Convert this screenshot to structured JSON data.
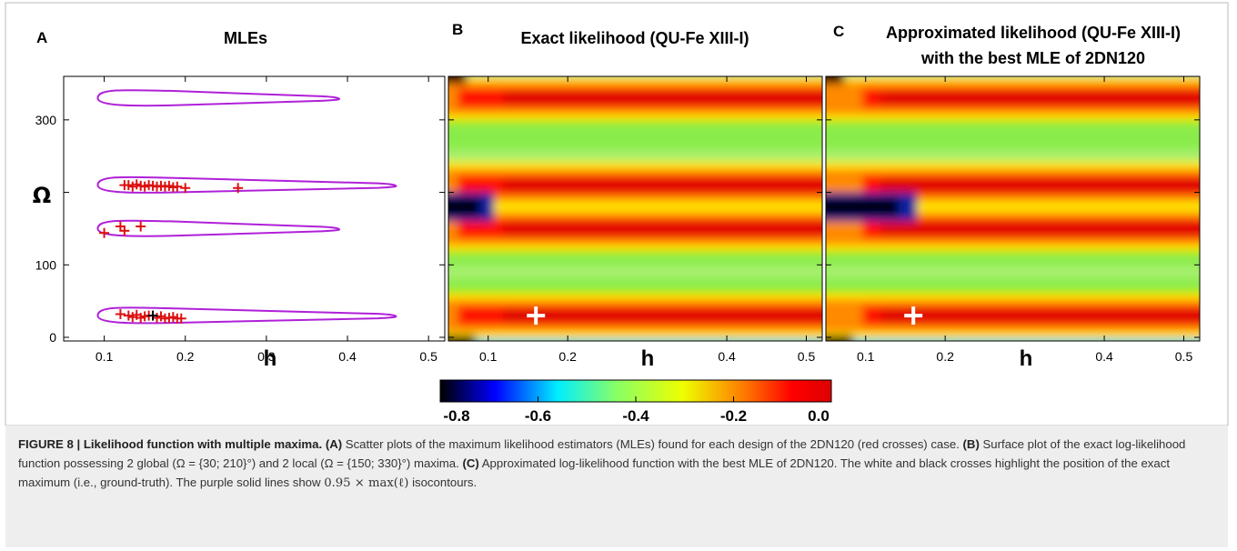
{
  "panels": [
    {
      "letter": "A",
      "title_lines": [
        "MLEs"
      ]
    },
    {
      "letter": "B",
      "title_lines": [
        "Exact likelihood (QU-Fe XIII-I)"
      ]
    },
    {
      "letter": "C",
      "title_lines": [
        "Approximated likelihood (QU-Fe XIII-I)",
        "with the best MLE of 2DN120"
      ]
    }
  ],
  "axes": {
    "y_label": "Ω",
    "x_label": "h",
    "y_ticks": [
      "0",
      "100",
      "300"
    ],
    "x_ticks_a": [
      "0.1",
      "0.2",
      "0.3",
      "0.4",
      "0.5"
    ],
    "x_ticks_bc": [
      "0.1",
      "0.2",
      "0.4",
      "0.5"
    ]
  },
  "colorbar": {
    "tick_labels": [
      "-0.8",
      "-0.6",
      "-0.4",
      "-0.2",
      "0.0"
    ],
    "stops": [
      "#000000",
      "#0000ff",
      "#00eeff",
      "#88ff66",
      "#eeff00",
      "#ff7700",
      "#ff0000",
      "#dd0000"
    ]
  },
  "colors": {
    "contour": "#b020d8",
    "mle_cross": "#dd1111",
    "truth_cross_a": "#000000",
    "truth_cross_bc": "#ffffff"
  },
  "chart_data": [
    {
      "type": "scatter",
      "title": "MLEs",
      "xlabel": "h",
      "ylabel": "Ω",
      "xlim": [
        0.05,
        0.52
      ],
      "ylim": [
        -5,
        360
      ],
      "series": [
        {
          "name": "MLEs 2DN120",
          "marker": "plus",
          "color": "#dd1111",
          "points": [
            [
              0.125,
              210
            ],
            [
              0.13,
              210
            ],
            [
              0.135,
              208
            ],
            [
              0.14,
              211
            ],
            [
              0.145,
              209
            ],
            [
              0.15,
              208
            ],
            [
              0.155,
              210
            ],
            [
              0.16,
              209
            ],
            [
              0.165,
              208
            ],
            [
              0.17,
              209
            ],
            [
              0.175,
              208
            ],
            [
              0.18,
              209
            ],
            [
              0.185,
              207
            ],
            [
              0.19,
              208
            ],
            [
              0.2,
              206
            ],
            [
              0.265,
              206
            ],
            [
              0.12,
              153
            ],
            [
              0.125,
              147
            ],
            [
              0.145,
              153
            ],
            [
              0.1,
              144
            ],
            [
              0.12,
              32
            ],
            [
              0.13,
              30
            ],
            [
              0.135,
              28
            ],
            [
              0.14,
              31
            ],
            [
              0.145,
              27
            ],
            [
              0.15,
              29
            ],
            [
              0.155,
              30
            ],
            [
              0.165,
              27
            ],
            [
              0.17,
              29
            ],
            [
              0.175,
              26
            ],
            [
              0.18,
              27
            ],
            [
              0.185,
              28
            ],
            [
              0.19,
              26
            ],
            [
              0.195,
              26
            ]
          ]
        },
        {
          "name": "ground-truth",
          "marker": "plus",
          "color": "#000000",
          "points": [
            [
              0.16,
              30
            ]
          ]
        }
      ],
      "contours": [
        {
          "omega": 330,
          "h_max": 0.39
        },
        {
          "omega": 210,
          "h_max": 0.46
        },
        {
          "omega": 150,
          "h_max": 0.39
        },
        {
          "omega": 30,
          "h_max": 0.46
        }
      ]
    },
    {
      "type": "heatmap",
      "title": "Exact likelihood (QU-Fe XIII-I)",
      "xlabel": "h",
      "ylabel": "",
      "xlim": [
        0.05,
        0.52
      ],
      "ylim": [
        -5,
        360
      ],
      "color_range": [
        -0.8,
        0.0
      ],
      "maxima_omega": [
        30,
        150,
        210,
        330
      ],
      "ground_truth": [
        0.16,
        30
      ]
    },
    {
      "type": "heatmap",
      "title": "Approximated likelihood (QU-Fe XIII-I) with the best MLE of 2DN120",
      "xlabel": "h",
      "ylabel": "",
      "xlim": [
        0.05,
        0.52
      ],
      "ylim": [
        -5,
        360
      ],
      "color_range": [
        -0.8,
        0.0
      ],
      "maxima_omega": [
        30,
        150,
        210,
        330
      ],
      "ground_truth": [
        0.16,
        30
      ]
    }
  ],
  "caption": {
    "label": "FIGURE 8 | Likelihood function with multiple maxima.",
    "a_label": "(A)",
    "a_text": "Scatter plots of the maximum likelihood estimators (MLEs) found for each design of the 2DN120 (red crosses) case.",
    "b_label": "(B)",
    "b_text_1": "Surface plot of the exact log-likelihood function possessing 2 global (Ω = {30; 210}°) and 2 local (Ω = {150; 330}°) maxima.",
    "c_label": "(C)",
    "c_text": "Approximated log-likelihood function with the best MLE of 2DN120. The white and black crosses highlight the position of the exact maximum (i.e., ground-truth). The purple solid lines show",
    "c_math": "0.95 × max(ℓ)",
    "c_tail": "isocontours."
  }
}
